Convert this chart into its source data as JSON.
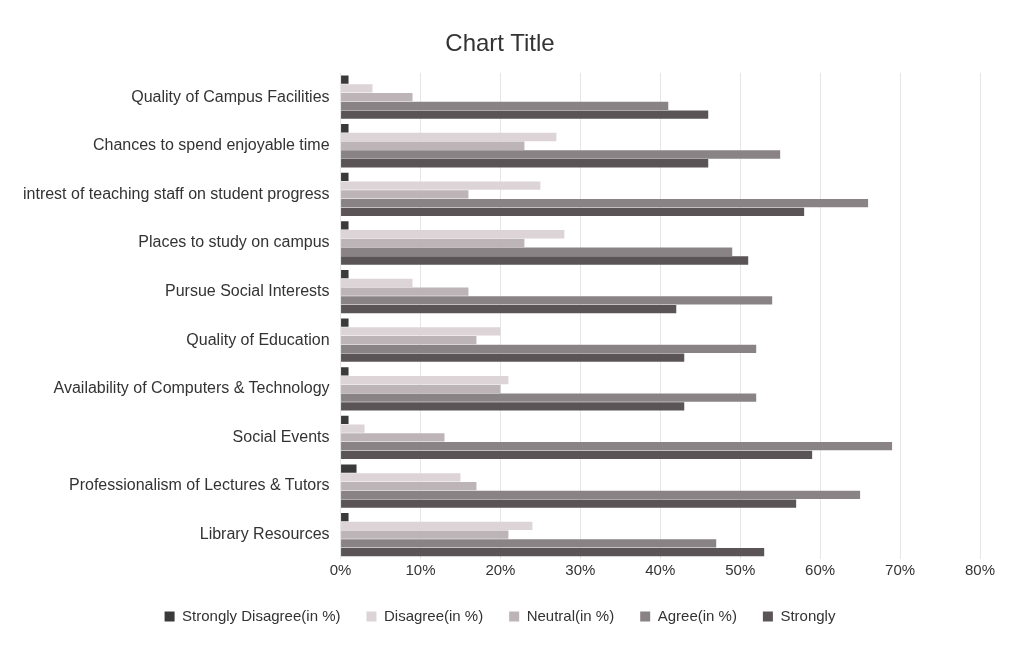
{
  "chart_data": {
    "type": "bar",
    "orientation": "horizontal",
    "title": "Chart Title",
    "categories": [
      "Quality of Campus Facilities",
      "Chances to spend enjoyable time",
      "intrest of teaching staff on student progress",
      "Places to study on campus",
      "Pursue Social Interests",
      "Quality of Education",
      "Availability of Computers & Technology",
      "Social Events",
      "Professionalism of Lectures & Tutors",
      "Library Resources"
    ],
    "series": [
      {
        "name": "Strongly Disagree(in %)",
        "color": "#3a3a3a",
        "values": [
          1,
          1,
          1,
          1,
          1,
          1,
          1,
          1,
          2,
          1
        ]
      },
      {
        "name": "Disagree(in %)",
        "color": "#dcd4d6",
        "values": [
          4,
          27,
          25,
          28,
          9,
          20,
          21,
          3,
          15,
          24
        ]
      },
      {
        "name": "Neutral(in %)",
        "color": "#bcb4b6",
        "values": [
          9,
          23,
          16,
          23,
          16,
          17,
          20,
          13,
          17,
          21
        ]
      },
      {
        "name": "Agree(in %)",
        "color": "#8a8385",
        "values": [
          41,
          55,
          66,
          49,
          54,
          52,
          52,
          69,
          65,
          47
        ]
      },
      {
        "name": "Strongly",
        "color": "#5a5456",
        "values": [
          46,
          46,
          58,
          51,
          42,
          43,
          43,
          59,
          57,
          53
        ]
      }
    ],
    "xlim": [
      0,
      80
    ],
    "xticks": [
      {
        "value": 0,
        "label": "0%"
      },
      {
        "value": 10,
        "label": "10%"
      },
      {
        "value": 20,
        "label": "20%"
      },
      {
        "value": 30,
        "label": "30%"
      },
      {
        "value": 40,
        "label": "40%"
      },
      {
        "value": 50,
        "label": "50%"
      },
      {
        "value": 60,
        "label": "60%"
      },
      {
        "value": 70,
        "label": "70%"
      },
      {
        "value": 80,
        "label": "80%"
      }
    ],
    "grid": "x",
    "legend": "bottom"
  }
}
